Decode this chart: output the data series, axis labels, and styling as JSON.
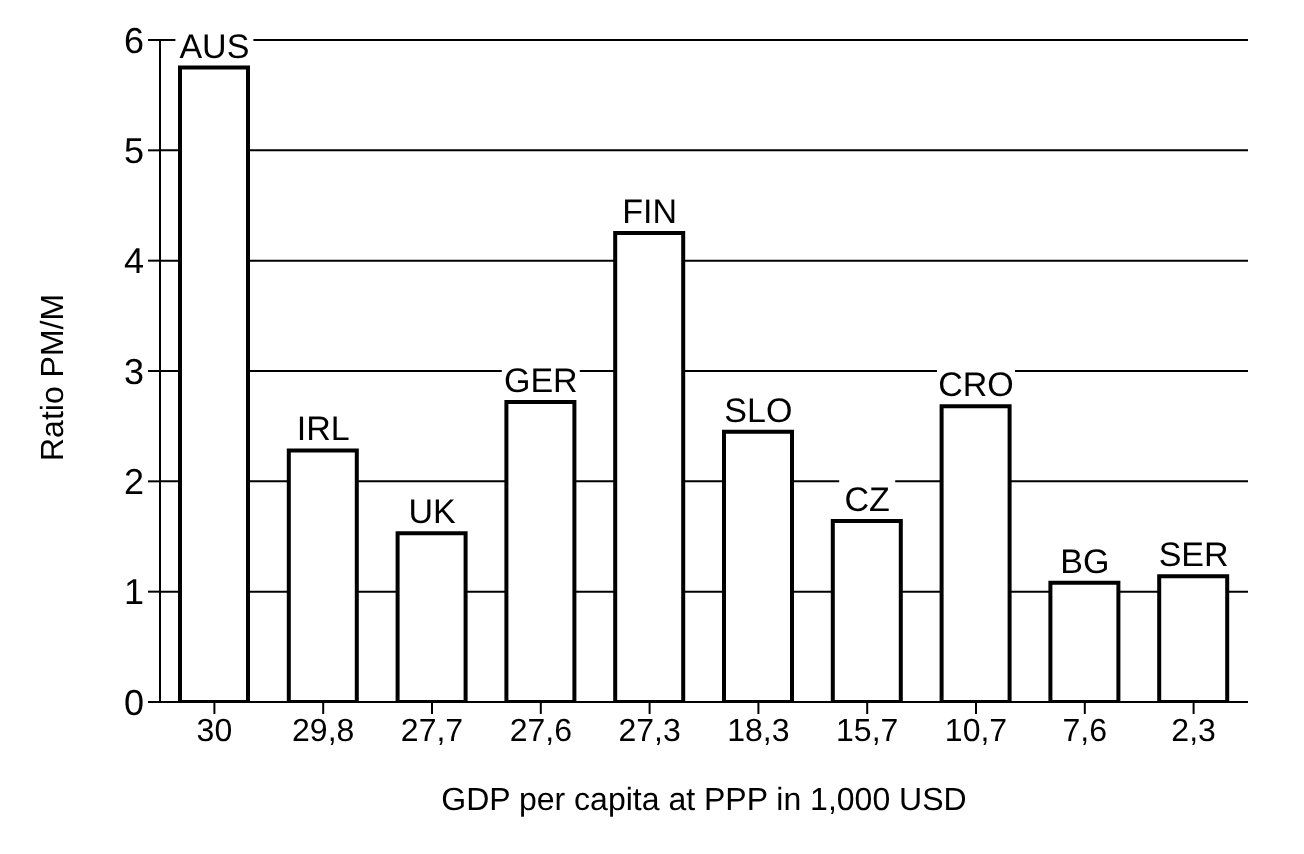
{
  "chart_data": {
    "type": "bar",
    "xlabel": "GDP per capita at PPP in 1,000 USD",
    "ylabel": "Ratio PM/M",
    "categories": [
      "30",
      "29,8",
      "27,7",
      "27,6",
      "27,3",
      "18,3",
      "15,7",
      "10,7",
      "7,6",
      "2,3"
    ],
    "values": [
      5.75,
      2.28,
      1.53,
      2.72,
      4.25,
      2.45,
      1.64,
      2.68,
      1.08,
      1.14
    ],
    "color": "#ffffff",
    "ylim": [
      0,
      6
    ],
    "yticks": [
      0,
      1,
      2,
      3,
      4,
      5,
      6
    ],
    "grid": "y",
    "annotations": [
      {
        "text": "AUS",
        "x": "30",
        "y": 5.75
      },
      {
        "text": "IRL",
        "x": "29,8",
        "y": 2.28
      },
      {
        "text": "UK",
        "x": "27,7",
        "y": 1.53
      },
      {
        "text": "GER",
        "x": "27,6",
        "y": 2.72
      },
      {
        "text": "FIN",
        "x": "27,3",
        "y": 4.25
      },
      {
        "text": "SLO",
        "x": "18,3",
        "y": 2.45
      },
      {
        "text": "CZ",
        "x": "15,7",
        "y": 1.64
      },
      {
        "text": "CRO",
        "x": "10,7",
        "y": 2.68
      },
      {
        "text": "BG",
        "x": "7,6",
        "y": 1.08
      },
      {
        "text": "SER",
        "x": "2,3",
        "y": 1.14
      }
    ]
  }
}
